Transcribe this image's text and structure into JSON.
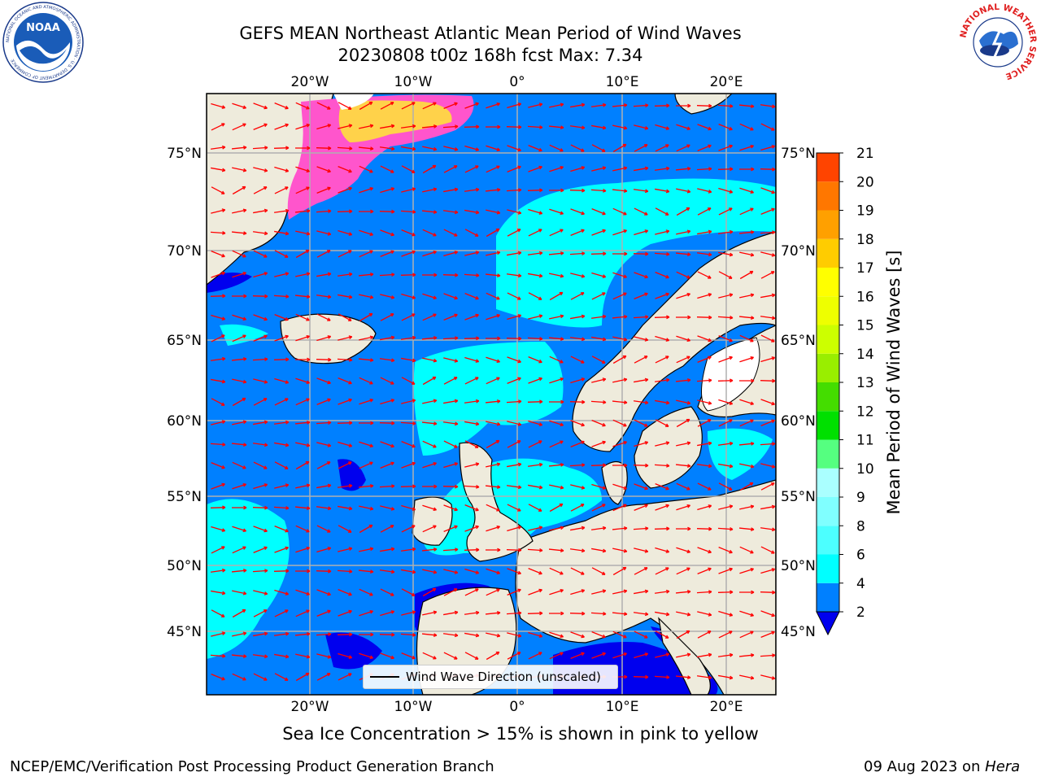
{
  "title_line1": "GEFS MEAN Northeast Atlantic Mean Period of Wind Waves",
  "title_line2": "20230808 t00z 168h fcst   Max: 7.34",
  "logos": {
    "noaa": {
      "label": "NOAA",
      "ring_text": "NATIONAL OCEANIC AND ATMOSPHERIC ADMINISTRATION · U.S. DEPARTMENT OF COMMERCE"
    },
    "nws": {
      "ring_text": "NATIONAL WEATHER SERVICE"
    }
  },
  "map": {
    "lon_labels": [
      "20°W",
      "10°W",
      "0°",
      "10°E",
      "20°E"
    ],
    "lat_labels": [
      "75°N",
      "70°N",
      "65°N",
      "60°N",
      "55°N",
      "50°N",
      "45°N"
    ],
    "colors": {
      "land": "#eeebdc",
      "ocean_low": "#0000ee",
      "ocean_2_4": "#0080ff",
      "ocean_4_6": "#00ffff",
      "ocean_6_8": "#4cffff",
      "ice_pink": "#ff55cc",
      "ice_yellow": "#ffd24a",
      "arrows": "#ff0000",
      "grid": "#b0b0b0"
    }
  },
  "colorbar": {
    "title": "Mean Period of Wind Waves [s]",
    "ticks": [
      "2",
      "4",
      "6",
      "8",
      "9",
      "10",
      "11",
      "12",
      "13",
      "14",
      "15",
      "16",
      "17",
      "18",
      "19",
      "20",
      "21"
    ],
    "colors": [
      "#0080ff",
      "#00ffff",
      "#4cffff",
      "#80ffff",
      "#aaffff",
      "#55ff80",
      "#00e000",
      "#44dd00",
      "#99ee00",
      "#ccff00",
      "#eeff00",
      "#ffff00",
      "#ffcc00",
      "#ffa000",
      "#ff7700",
      "#ff4400",
      "#ff0000"
    ],
    "under_color": "#0000ee"
  },
  "legend": {
    "label": "Wind Wave Direction (unscaled)"
  },
  "subtitle": "Sea Ice Concentration > 15% is shown in pink to yellow",
  "footer": {
    "left": "NCEP/EMC/Verification Post Processing Product Generation Branch",
    "right_date": "09 Aug 2023 on ",
    "right_host": "Hera"
  }
}
